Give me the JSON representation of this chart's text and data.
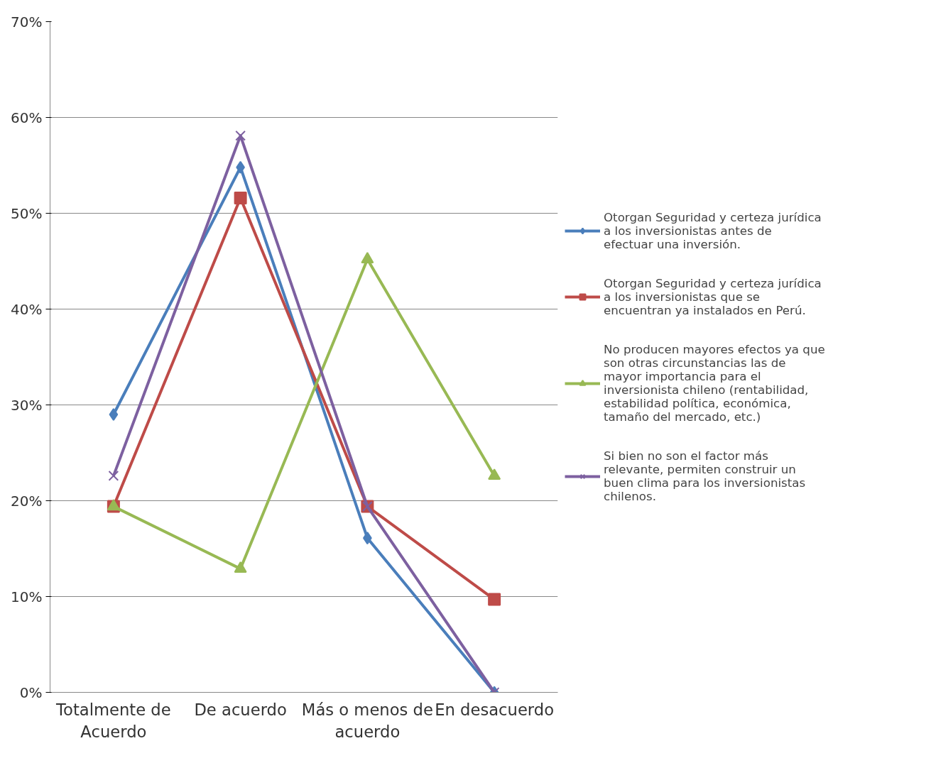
{
  "chart_data": {
    "type": "line",
    "categories": [
      "Totalmente de Acuerdo",
      "De acuerdo",
      "Más o menos de acuerdo",
      "En desacuerdo"
    ],
    "series": [
      {
        "name": "Otorgan Seguridad y certeza jurídica a los inversionistas antes de efectuar una inversión.",
        "color": "#4a7ebb",
        "marker": "diamond",
        "values": [
          29.0,
          54.8,
          16.1,
          0
        ]
      },
      {
        "name": "Otorgan Seguridad y certeza jurídica a los inversionistas que se encuentran ya instalados en Perú.",
        "color": "#be4b48",
        "marker": "square",
        "values": [
          19.4,
          51.6,
          19.4,
          9.7
        ]
      },
      {
        "name": "No producen mayores efectos ya que son otras circunstancias las de mayor importancia para el inversionista chileno (rentabilidad, estabilidad política, económica, tamaño del mercado, etc.)",
        "color": "#98b954",
        "marker": "triangle",
        "values": [
          19.4,
          12.9,
          45.2,
          22.6
        ]
      },
      {
        "name": "Si bien no son el factor más relevante, permiten construir un buen clima para los inversionistas chilenos.",
        "color": "#7d60a0",
        "marker": "x",
        "values": [
          22.6,
          58.1,
          19.4,
          0
        ]
      }
    ],
    "ylim": [
      0,
      70
    ],
    "yticks": [
      {
        "value": 0,
        "label": "0%"
      },
      {
        "value": 10,
        "label": "10%"
      },
      {
        "value": 20,
        "label": "20%"
      },
      {
        "value": 30,
        "label": "30%"
      },
      {
        "value": 40,
        "label": "40%"
      },
      {
        "value": 50,
        "label": "50%"
      },
      {
        "value": 60,
        "label": "60%"
      },
      {
        "value": 70,
        "label": "70%"
      }
    ],
    "grid": "y",
    "legend": "right",
    "line_style": "solid"
  }
}
